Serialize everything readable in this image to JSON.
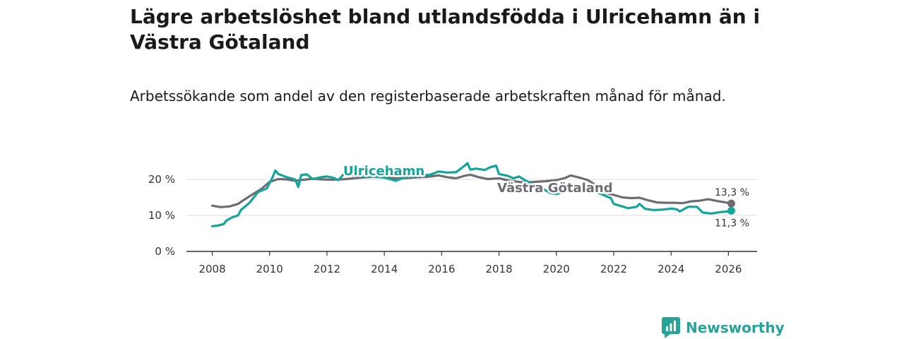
{
  "title": "Lägre arbetslöshet bland utlandsfödda i Ulricehamn än i Västra Götaland",
  "subtitle": "Arbetssökande som andel av den registerbaserade arbetskraften månad för månad.",
  "brand": "Newsworthy",
  "colors": {
    "ulricehamn": "#15a49a",
    "vastra": "#6e6c72",
    "grid": "#dddddd",
    "axis": "#333333"
  },
  "chart_data": {
    "type": "line",
    "title": "Lägre arbetslöshet bland utlandsfödda i Ulricehamn än i Västra Götaland",
    "subtitle": "Arbetssökande som andel av den registerbaserade arbetskraften månad för månad.",
    "xlabel": "",
    "ylabel": "",
    "xlim": [
      2007.1,
      2027.0
    ],
    "ylim": [
      0,
      20
    ],
    "x_ticks": [
      {
        "value": 2008,
        "label": "2008"
      },
      {
        "value": 2010,
        "label": "2010"
      },
      {
        "value": 2012,
        "label": "2012"
      },
      {
        "value": 2014,
        "label": "2014"
      },
      {
        "value": 2016,
        "label": "2016"
      },
      {
        "value": 2018,
        "label": "2018"
      },
      {
        "value": 2020,
        "label": "2020"
      },
      {
        "value": 2022,
        "label": "2022"
      },
      {
        "value": 2024,
        "label": "2024"
      },
      {
        "value": 2026,
        "label": "2026"
      }
    ],
    "y_ticks": [
      {
        "value": 0,
        "label": "0 %"
      },
      {
        "value": 10,
        "label": "10 %"
      },
      {
        "value": 20,
        "label": "20 %"
      }
    ],
    "grid": true,
    "legend": "direct labels on lines",
    "series": [
      {
        "name": "Ulricehamn",
        "color": "#15a49a",
        "end_label": "11,3 %",
        "points": [
          [
            2008.0,
            7.0
          ],
          [
            2008.2,
            7.2
          ],
          [
            2008.4,
            7.6
          ],
          [
            2008.5,
            8.6
          ],
          [
            2008.7,
            9.5
          ],
          [
            2008.9,
            10.0
          ],
          [
            2009.0,
            11.5
          ],
          [
            2009.3,
            13.5
          ],
          [
            2009.5,
            15.5
          ],
          [
            2009.6,
            16.5
          ],
          [
            2009.9,
            17.5
          ],
          [
            2010.1,
            20.5
          ],
          [
            2010.2,
            22.5
          ],
          [
            2010.3,
            21.5
          ],
          [
            2010.6,
            20.6
          ],
          [
            2010.8,
            20.2
          ],
          [
            2010.9,
            19.9
          ],
          [
            2011.0,
            17.9
          ],
          [
            2011.1,
            21.2
          ],
          [
            2011.3,
            21.4
          ],
          [
            2011.5,
            20.1
          ],
          [
            2011.8,
            20.6
          ],
          [
            2012.0,
            20.8
          ],
          [
            2012.2,
            20.5
          ],
          [
            2012.4,
            19.8
          ],
          [
            2012.6,
            21.6
          ],
          [
            2013.0,
            21.0
          ],
          [
            2013.5,
            20.8
          ],
          [
            2014.0,
            20.5
          ],
          [
            2014.4,
            19.6
          ],
          [
            2014.8,
            20.8
          ],
          [
            2015.2,
            21.0
          ],
          [
            2015.6,
            21.3
          ],
          [
            2015.9,
            22.2
          ],
          [
            2016.2,
            21.9
          ],
          [
            2016.5,
            22.0
          ],
          [
            2016.8,
            23.8
          ],
          [
            2016.9,
            24.5
          ],
          [
            2017.0,
            22.7
          ],
          [
            2017.2,
            23.0
          ],
          [
            2017.5,
            22.6
          ],
          [
            2017.7,
            23.4
          ],
          [
            2017.9,
            23.8
          ],
          [
            2018.0,
            21.5
          ],
          [
            2018.3,
            21.0
          ],
          [
            2018.5,
            20.3
          ],
          [
            2018.7,
            20.8
          ],
          [
            2018.9,
            19.8
          ],
          [
            2019.2,
            18.5
          ],
          [
            2019.5,
            17.5
          ],
          [
            2019.8,
            16.2
          ],
          [
            2020.0,
            15.9
          ],
          [
            2020.2,
            16.5
          ],
          [
            2020.5,
            17.0
          ],
          [
            2020.8,
            17.8
          ],
          [
            2021.1,
            17.0
          ],
          [
            2021.4,
            16.4
          ],
          [
            2021.6,
            15.8
          ],
          [
            2021.9,
            14.8
          ],
          [
            2022.0,
            13.2
          ],
          [
            2022.3,
            12.5
          ],
          [
            2022.5,
            12.0
          ],
          [
            2022.8,
            12.4
          ],
          [
            2022.9,
            13.2
          ],
          [
            2023.1,
            11.8
          ],
          [
            2023.4,
            11.5
          ],
          [
            2023.7,
            11.6
          ],
          [
            2024.0,
            11.9
          ],
          [
            2024.2,
            11.7
          ],
          [
            2024.3,
            11.1
          ],
          [
            2024.6,
            12.4
          ],
          [
            2024.9,
            12.4
          ],
          [
            2025.1,
            10.8
          ],
          [
            2025.4,
            10.5
          ],
          [
            2025.7,
            10.9
          ],
          [
            2026.0,
            11.1
          ],
          [
            2026.1,
            11.3
          ]
        ]
      },
      {
        "name": "Västra Götaland",
        "color": "#6e6c72",
        "end_label": "13,3 %",
        "points": [
          [
            2008.0,
            12.7
          ],
          [
            2008.3,
            12.3
          ],
          [
            2008.6,
            12.5
          ],
          [
            2008.9,
            13.2
          ],
          [
            2009.1,
            14.3
          ],
          [
            2009.4,
            15.8
          ],
          [
            2009.7,
            17.3
          ],
          [
            2010.0,
            19.3
          ],
          [
            2010.3,
            20.1
          ],
          [
            2010.6,
            20.0
          ],
          [
            2010.9,
            19.6
          ],
          [
            2011.2,
            19.9
          ],
          [
            2011.5,
            20.2
          ],
          [
            2011.8,
            20.0
          ],
          [
            2012.2,
            19.9
          ],
          [
            2012.5,
            20.0
          ],
          [
            2012.8,
            20.2
          ],
          [
            2013.2,
            20.5
          ],
          [
            2013.6,
            20.7
          ],
          [
            2014.0,
            20.6
          ],
          [
            2014.4,
            20.3
          ],
          [
            2014.8,
            20.4
          ],
          [
            2015.2,
            20.6
          ],
          [
            2015.5,
            20.7
          ],
          [
            2015.9,
            21.1
          ],
          [
            2016.2,
            20.6
          ],
          [
            2016.5,
            20.3
          ],
          [
            2016.8,
            21.0
          ],
          [
            2017.0,
            21.3
          ],
          [
            2017.3,
            20.6
          ],
          [
            2017.6,
            20.1
          ],
          [
            2017.8,
            20.2
          ],
          [
            2018.0,
            20.3
          ],
          [
            2018.4,
            19.6
          ],
          [
            2018.8,
            19.2
          ],
          [
            2019.2,
            19.3
          ],
          [
            2019.6,
            19.5
          ],
          [
            2020.0,
            19.8
          ],
          [
            2020.3,
            20.4
          ],
          [
            2020.5,
            21.1
          ],
          [
            2020.8,
            20.5
          ],
          [
            2021.1,
            19.8
          ],
          [
            2021.4,
            18.3
          ],
          [
            2021.7,
            16.3
          ],
          [
            2022.0,
            15.7
          ],
          [
            2022.3,
            15.0
          ],
          [
            2022.6,
            14.8
          ],
          [
            2022.9,
            14.9
          ],
          [
            2023.2,
            14.2
          ],
          [
            2023.5,
            13.6
          ],
          [
            2023.8,
            13.5
          ],
          [
            2024.1,
            13.5
          ],
          [
            2024.4,
            13.4
          ],
          [
            2024.7,
            13.9
          ],
          [
            2025.0,
            14.1
          ],
          [
            2025.3,
            14.5
          ],
          [
            2025.6,
            14.0
          ],
          [
            2025.9,
            13.6
          ],
          [
            2026.1,
            13.3
          ]
        ]
      }
    ]
  }
}
